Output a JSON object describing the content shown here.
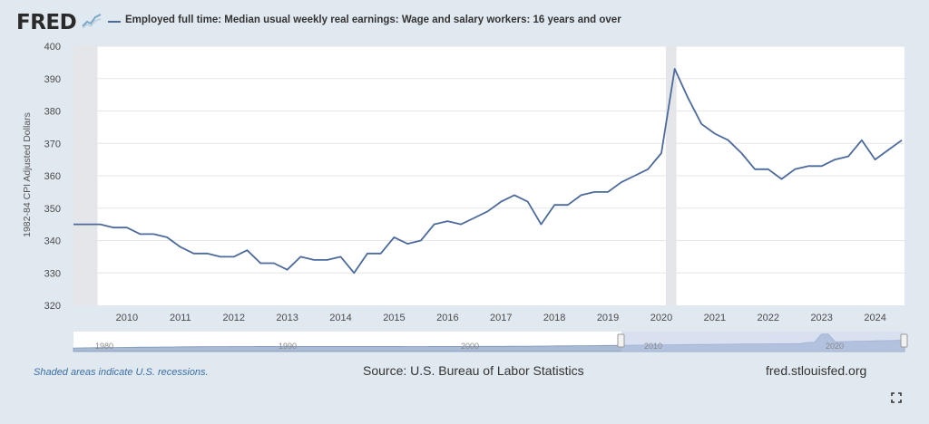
{
  "header": {
    "logo": "FRED",
    "logo_icon": "fred-chart-icon",
    "series_label": "Employed full time: Median usual weekly real earnings: Wage and salary workers: 16 years and over"
  },
  "colors": {
    "series": "#4c6a9b",
    "recession": "#e4e6ea",
    "navigator_fill": "#a8bad4",
    "navigator_selection": "#b9c8e6"
  },
  "chart_data": {
    "type": "line",
    "title": "",
    "xlabel": "",
    "ylabel": "1982-84 CPI Adjusted Dollars",
    "ylim": [
      320,
      400
    ],
    "yticks": [
      "320",
      "330",
      "340",
      "350",
      "360",
      "370",
      "380",
      "390",
      "400"
    ],
    "xticks": [
      "2010",
      "2011",
      "2012",
      "2013",
      "2014",
      "2015",
      "2016",
      "2017",
      "2018",
      "2019",
      "2020",
      "2021",
      "2022",
      "2023",
      "2024"
    ],
    "grid": true,
    "recessions": [
      [
        "2007-12",
        "2009-06"
      ],
      [
        "2020-02",
        "2020-04"
      ]
    ],
    "series": [
      {
        "x": [
          "2009-01",
          "2009-04",
          "2009-07",
          "2009-10",
          "2010-01",
          "2010-04",
          "2010-07",
          "2010-10",
          "2011-01",
          "2011-04",
          "2011-07",
          "2011-10",
          "2012-01",
          "2012-04",
          "2012-07",
          "2012-10",
          "2013-01",
          "2013-04",
          "2013-07",
          "2013-10",
          "2014-01",
          "2014-04",
          "2014-07",
          "2014-10",
          "2015-01",
          "2015-04",
          "2015-07",
          "2015-10",
          "2016-01",
          "2016-04",
          "2016-07",
          "2016-10",
          "2017-01",
          "2017-04",
          "2017-07",
          "2017-10",
          "2018-01",
          "2018-04",
          "2018-07",
          "2018-10",
          "2019-01",
          "2019-04",
          "2019-07",
          "2019-10",
          "2020-01",
          "2020-04",
          "2020-07",
          "2020-10",
          "2021-01",
          "2021-04",
          "2021-07",
          "2021-10",
          "2022-01",
          "2022-04",
          "2022-07",
          "2022-10",
          "2023-01",
          "2023-04",
          "2023-07",
          "2023-10",
          "2024-01",
          "2024-04",
          "2024-07"
        ],
        "values": [
          345,
          345,
          345,
          344,
          344,
          342,
          342,
          341,
          338,
          336,
          336,
          335,
          335,
          337,
          333,
          333,
          331,
          335,
          334,
          334,
          335,
          330,
          336,
          336,
          341,
          339,
          340,
          345,
          346,
          345,
          347,
          349,
          352,
          354,
          352,
          345,
          351,
          351,
          354,
          355,
          355,
          358,
          360,
          362,
          367,
          393,
          384,
          376,
          373,
          371,
          367,
          362,
          362,
          359,
          362,
          363,
          363,
          365,
          366,
          371,
          365,
          368,
          371
        ]
      }
    ]
  },
  "navigator": {
    "labels": [
      "1980",
      "1990",
      "2000",
      "2010",
      "2020"
    ]
  },
  "footer": {
    "note": "Shaded areas indicate U.S. recessions.",
    "source": "Source: U.S. Bureau of Labor Statistics",
    "site": "fred.stlouisfed.org",
    "fullscreen_icon": "fullscreen-icon"
  }
}
